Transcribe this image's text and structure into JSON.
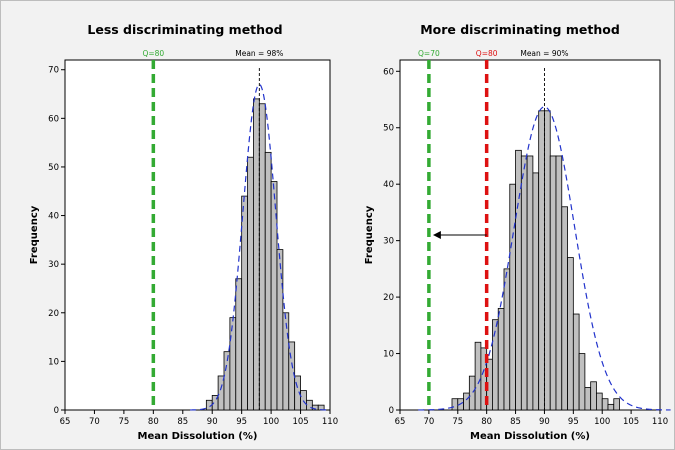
{
  "chart_data": [
    {
      "type": "bar",
      "title": "Less discriminating method",
      "xlabel": "Mean Dissolution (%)",
      "ylabel": "Frequency",
      "xlim": [
        65,
        110
      ],
      "ylim": [
        0,
        72
      ],
      "x_ticks": [
        65,
        70,
        75,
        80,
        85,
        90,
        95,
        100,
        105,
        110
      ],
      "y_ticks": [
        0,
        10,
        20,
        30,
        40,
        50,
        60,
        70
      ],
      "bin_width": 1,
      "bins": [
        {
          "x": 89.5,
          "y": 2
        },
        {
          "x": 90.5,
          "y": 3
        },
        {
          "x": 91.5,
          "y": 7
        },
        {
          "x": 92.5,
          "y": 12
        },
        {
          "x": 93.5,
          "y": 19
        },
        {
          "x": 94.5,
          "y": 27
        },
        {
          "x": 95.5,
          "y": 44
        },
        {
          "x": 96.5,
          "y": 52
        },
        {
          "x": 97.5,
          "y": 64
        },
        {
          "x": 98.5,
          "y": 63
        },
        {
          "x": 99.5,
          "y": 53
        },
        {
          "x": 100.5,
          "y": 47
        },
        {
          "x": 101.5,
          "y": 33
        },
        {
          "x": 102.5,
          "y": 20
        },
        {
          "x": 103.5,
          "y": 14
        },
        {
          "x": 104.5,
          "y": 7
        },
        {
          "x": 105.5,
          "y": 4
        },
        {
          "x": 106.5,
          "y": 2
        },
        {
          "x": 107.5,
          "y": 1
        },
        {
          "x": 108.5,
          "y": 1
        }
      ],
      "normal_curve": {
        "mean": 98,
        "sd": 2.8,
        "n": 470
      },
      "reference_lines": [
        {
          "x": 80,
          "label": "Q=80",
          "color": "#33aa33",
          "style": "thick-dashed"
        },
        {
          "x": 98,
          "label": "Mean = 98%",
          "color": "#000000",
          "style": "thin-dashed"
        }
      ],
      "grid": false
    },
    {
      "type": "bar",
      "title": "More discriminating method",
      "xlabel": "Mean Dissolution (%)",
      "ylabel": "Frequency",
      "xlim": [
        65,
        110
      ],
      "ylim": [
        0,
        62
      ],
      "x_ticks": [
        65,
        70,
        75,
        80,
        85,
        90,
        95,
        100,
        105,
        110
      ],
      "y_ticks": [
        0,
        10,
        20,
        30,
        40,
        50,
        60
      ],
      "bin_width": 1,
      "bins": [
        {
          "x": 74.5,
          "y": 2
        },
        {
          "x": 75.5,
          "y": 2
        },
        {
          "x": 76.5,
          "y": 3
        },
        {
          "x": 77.5,
          "y": 6
        },
        {
          "x": 78.5,
          "y": 12
        },
        {
          "x": 79.5,
          "y": 11
        },
        {
          "x": 80.5,
          "y": 9
        },
        {
          "x": 81.5,
          "y": 16
        },
        {
          "x": 82.5,
          "y": 18
        },
        {
          "x": 83.5,
          "y": 25
        },
        {
          "x": 84.5,
          "y": 40
        },
        {
          "x": 85.5,
          "y": 46
        },
        {
          "x": 86.5,
          "y": 45
        },
        {
          "x": 87.5,
          "y": 45
        },
        {
          "x": 88.5,
          "y": 42
        },
        {
          "x": 89.5,
          "y": 53
        },
        {
          "x": 90.5,
          "y": 53
        },
        {
          "x": 91.5,
          "y": 45
        },
        {
          "x": 92.5,
          "y": 45
        },
        {
          "x": 93.5,
          "y": 36
        },
        {
          "x": 94.5,
          "y": 27
        },
        {
          "x": 95.5,
          "y": 17
        },
        {
          "x": 96.5,
          "y": 10
        },
        {
          "x": 97.5,
          "y": 4
        },
        {
          "x": 98.5,
          "y": 5
        },
        {
          "x": 99.5,
          "y": 3
        },
        {
          "x": 100.5,
          "y": 2
        },
        {
          "x": 101.5,
          "y": 1
        },
        {
          "x": 102.5,
          "y": 2
        }
      ],
      "normal_curve": {
        "mean": 90,
        "sd": 5.2,
        "n": 700
      },
      "reference_lines": [
        {
          "x": 70,
          "label": "Q=70",
          "color": "#33aa33",
          "style": "thick-dashed"
        },
        {
          "x": 80,
          "label": "Q=80",
          "color": "#dd1111",
          "style": "thick-dashed"
        },
        {
          "x": 90,
          "label": "Mean = 90%",
          "color": "#000000",
          "style": "thin-dashed"
        }
      ],
      "arrow": {
        "from_x": 80,
        "to_x": 70,
        "y": 31
      },
      "grid": false
    }
  ],
  "colors": {
    "bar_fill": "#c0c0c0",
    "bar_stroke": "#000000",
    "curve": "#2233cc",
    "panel_bg": "#ffffff",
    "figure_bg": "#f2f2f2"
  }
}
